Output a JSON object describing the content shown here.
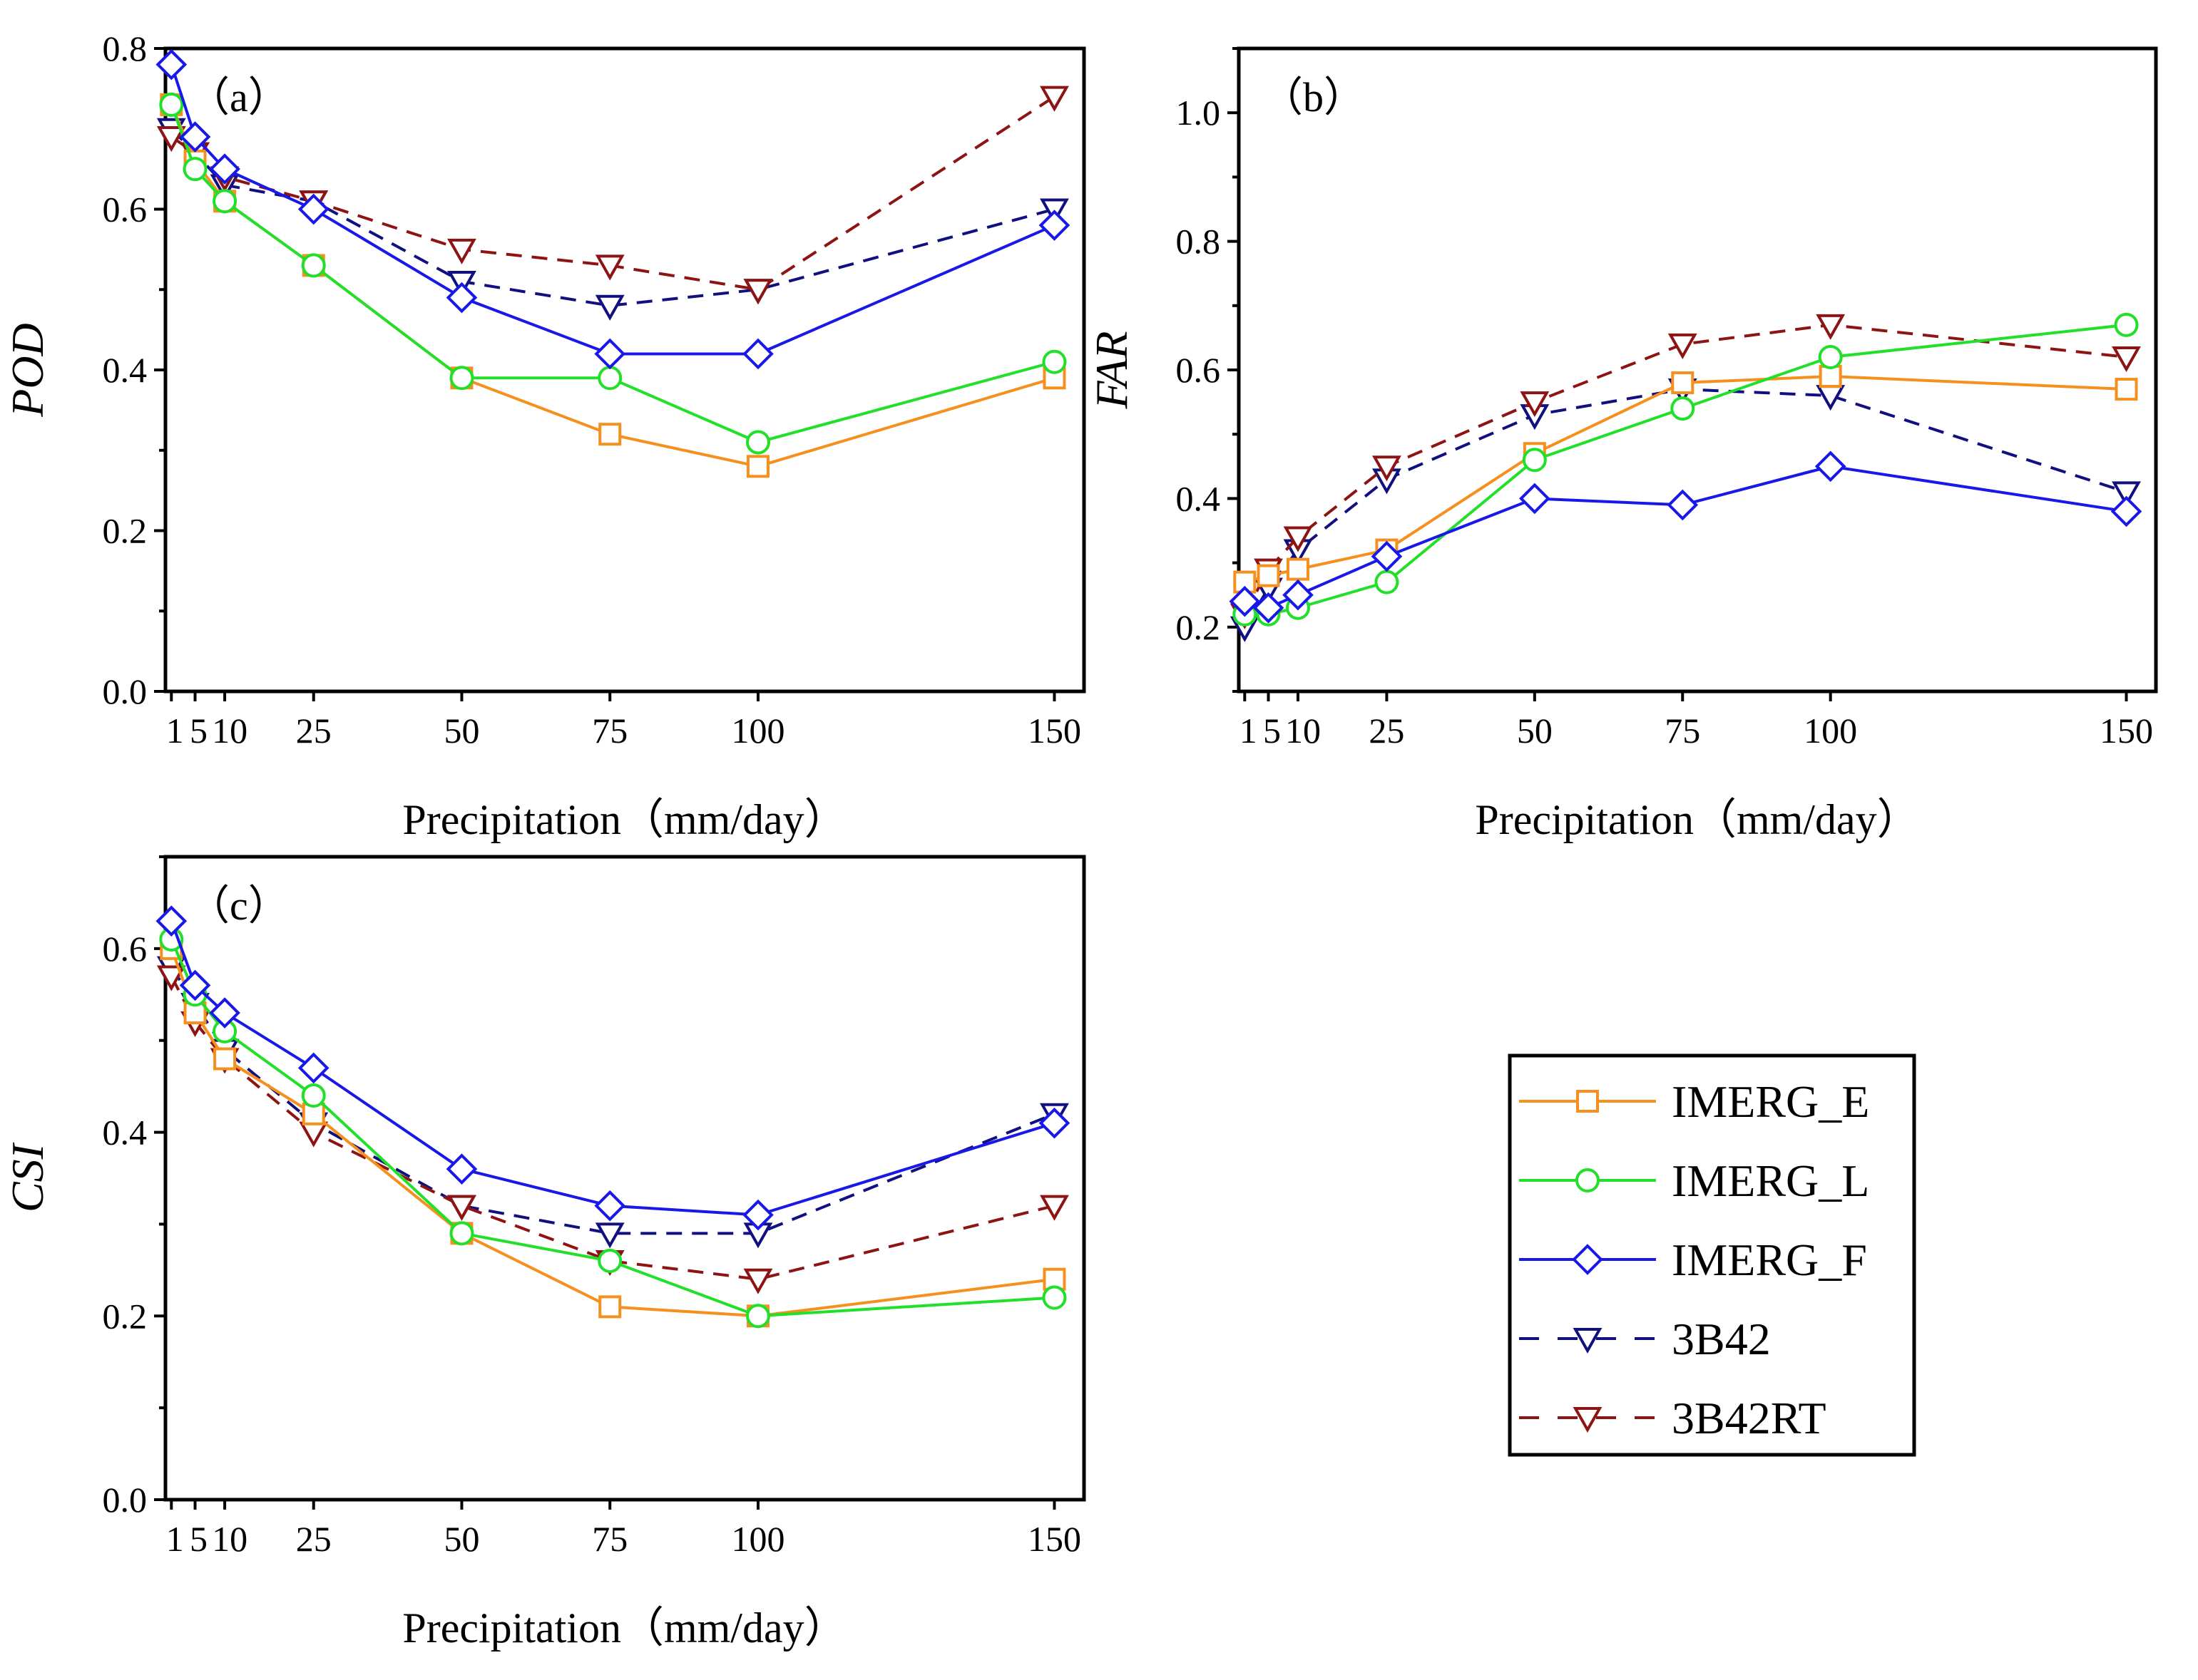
{
  "figure": {
    "x_ticks": [
      1,
      5,
      10,
      25,
      50,
      75,
      100,
      150
    ],
    "x_tick_labels": [
      "1",
      "5",
      "10",
      "25",
      "50",
      "75",
      "100",
      "150"
    ],
    "x_axis_title": "Precipitation（mm/day）"
  },
  "legend": {
    "items": [
      {
        "label": "IMERG_E",
        "color": "#F5901E",
        "marker": "square",
        "dashed": false
      },
      {
        "label": "IMERG_L",
        "color": "#22E02A",
        "marker": "circle",
        "dashed": false
      },
      {
        "label": "IMERG_F",
        "color": "#1818E8",
        "marker": "diamond",
        "dashed": false
      },
      {
        "label": "3B42",
        "color": "#101080",
        "marker": "triangle-down",
        "dashed": true
      },
      {
        "label": "3B42RT",
        "color": "#8E1414",
        "marker": "triangle-down",
        "dashed": true
      }
    ]
  },
  "chart_data": [
    {
      "type": "line",
      "panel_label": "（a）",
      "ylabel": "POD",
      "xlabel": "Precipitation（mm/day）",
      "x": [
        1,
        5,
        10,
        25,
        50,
        75,
        100,
        150
      ],
      "xlim": [
        0,
        155
      ],
      "ylim": [
        0,
        0.8
      ],
      "yticks": [
        0.0,
        0.2,
        0.4,
        0.6,
        0.8
      ],
      "ytick_labels": [
        "0.0",
        "0.2",
        "0.4",
        "0.6",
        "0.8"
      ],
      "series": [
        {
          "name": "IMERG_E",
          "values": [
            0.73,
            0.66,
            0.61,
            0.53,
            0.39,
            0.32,
            0.28,
            0.39
          ]
        },
        {
          "name": "IMERG_L",
          "values": [
            0.73,
            0.65,
            0.61,
            0.53,
            0.39,
            0.39,
            0.31,
            0.41
          ]
        },
        {
          "name": "IMERG_F",
          "values": [
            0.78,
            0.69,
            0.65,
            0.6,
            0.49,
            0.42,
            0.42,
            0.58
          ]
        },
        {
          "name": "3B42",
          "values": [
            0.7,
            0.67,
            0.63,
            0.61,
            0.51,
            0.48,
            0.5,
            0.6
          ]
        },
        {
          "name": "3B42RT",
          "values": [
            0.69,
            0.67,
            0.64,
            0.61,
            0.55,
            0.53,
            0.5,
            0.74
          ]
        }
      ]
    },
    {
      "type": "line",
      "panel_label": "（b）",
      "ylabel": "FAR",
      "xlabel": "Precipitation（mm/day）",
      "x": [
        1,
        5,
        10,
        25,
        50,
        75,
        100,
        150
      ],
      "xlim": [
        0,
        155
      ],
      "ylim": [
        0.1,
        1.1
      ],
      "yticks": [
        0.2,
        0.4,
        0.6,
        0.8,
        1.0
      ],
      "ytick_labels": [
        "0.2",
        "0.4",
        "0.6",
        "0.8",
        "1.0"
      ],
      "series": [
        {
          "name": "IMERG_E",
          "values": [
            0.27,
            0.28,
            0.29,
            0.32,
            0.47,
            0.58,
            0.59,
            0.57
          ]
        },
        {
          "name": "IMERG_L",
          "values": [
            0.22,
            0.22,
            0.23,
            0.27,
            0.46,
            0.54,
            0.62,
            0.67
          ]
        },
        {
          "name": "IMERG_F",
          "values": [
            0.24,
            0.23,
            0.25,
            0.31,
            0.4,
            0.39,
            0.45,
            0.38
          ]
        },
        {
          "name": "3B42",
          "values": [
            0.2,
            0.26,
            0.32,
            0.43,
            0.53,
            0.57,
            0.56,
            0.41
          ]
        },
        {
          "name": "3B42RT",
          "values": [
            0.22,
            0.29,
            0.34,
            0.45,
            0.55,
            0.64,
            0.67,
            0.62
          ]
        }
      ]
    },
    {
      "type": "line",
      "panel_label": "（c）",
      "ylabel": "CSI",
      "xlabel": "Precipitation（mm/day）",
      "x": [
        1,
        5,
        10,
        25,
        50,
        75,
        100,
        150
      ],
      "xlim": [
        0,
        155
      ],
      "ylim": [
        0,
        0.7
      ],
      "yticks": [
        0.0,
        0.2,
        0.4,
        0.6
      ],
      "ytick_labels": [
        "0.0",
        "0.2",
        "0.4",
        "0.6"
      ],
      "series": [
        {
          "name": "IMERG_E",
          "values": [
            0.6,
            0.53,
            0.48,
            0.42,
            0.29,
            0.21,
            0.2,
            0.24
          ]
        },
        {
          "name": "IMERG_L",
          "values": [
            0.61,
            0.55,
            0.51,
            0.44,
            0.29,
            0.26,
            0.2,
            0.22
          ]
        },
        {
          "name": "IMERG_F",
          "values": [
            0.63,
            0.56,
            0.53,
            0.47,
            0.36,
            0.32,
            0.31,
            0.41
          ]
        },
        {
          "name": "3B42",
          "values": [
            0.58,
            0.54,
            0.49,
            0.41,
            0.32,
            0.29,
            0.29,
            0.42
          ]
        },
        {
          "name": "3B42RT",
          "values": [
            0.57,
            0.52,
            0.48,
            0.4,
            0.32,
            0.26,
            0.24,
            0.32
          ]
        }
      ]
    }
  ]
}
